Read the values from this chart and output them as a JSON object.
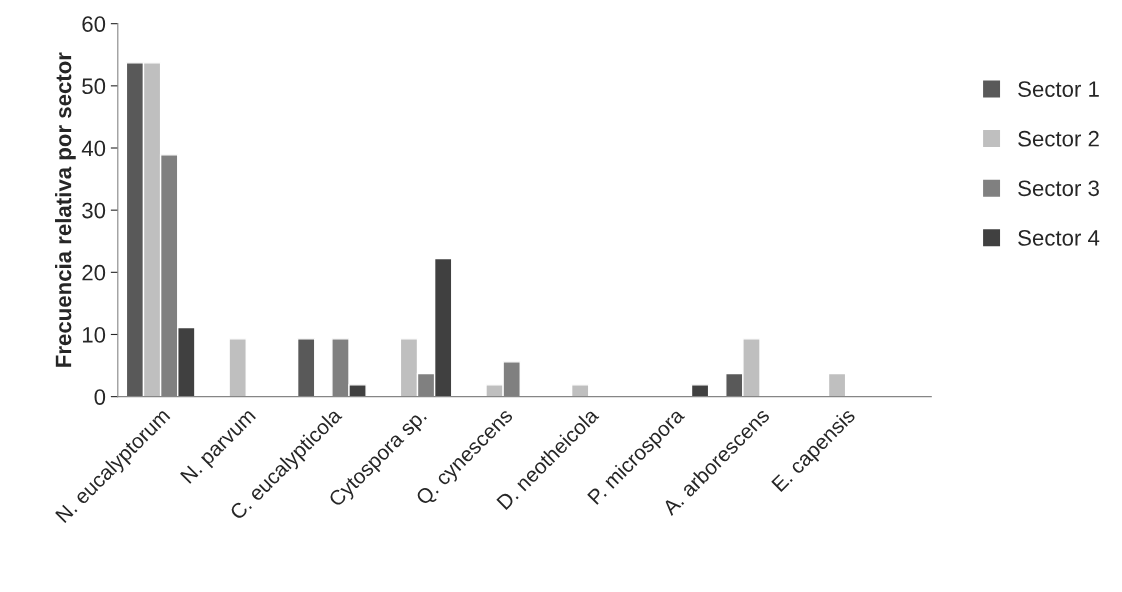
{
  "chart_data": {
    "type": "bar",
    "ylabel": "Frecuencia relativa por sector",
    "categories": [
      "N. eucalyptorum",
      "N. parvum",
      "C. eucalypticola",
      "Cytospora sp.",
      "Q. cynescens",
      "D. neotheicola",
      "P. microspora",
      "A. arborescens",
      "E. capensis"
    ],
    "series": [
      {
        "name": "Sector 1",
        "color": "#595959",
        "values": [
          53.7,
          null,
          9.3,
          null,
          null,
          null,
          null,
          3.7,
          null
        ]
      },
      {
        "name": "Sector 2",
        "color": "#bfbfbf",
        "values": [
          53.7,
          9.3,
          null,
          9.3,
          1.9,
          1.9,
          null,
          9.3,
          3.7
        ]
      },
      {
        "name": "Sector 3",
        "color": "#808080",
        "values": [
          38.9,
          null,
          9.3,
          3.7,
          5.6,
          null,
          null,
          null,
          null
        ]
      },
      {
        "name": "Sector 4",
        "color": "#404040",
        "values": [
          11.1,
          null,
          1.9,
          22.2,
          null,
          null,
          1.9,
          null,
          null
        ]
      }
    ],
    "ylim": [
      0,
      60
    ],
    "yticks": [
      0,
      10,
      20,
      30,
      40,
      50,
      60
    ],
    "grid": false,
    "legend": "right"
  }
}
